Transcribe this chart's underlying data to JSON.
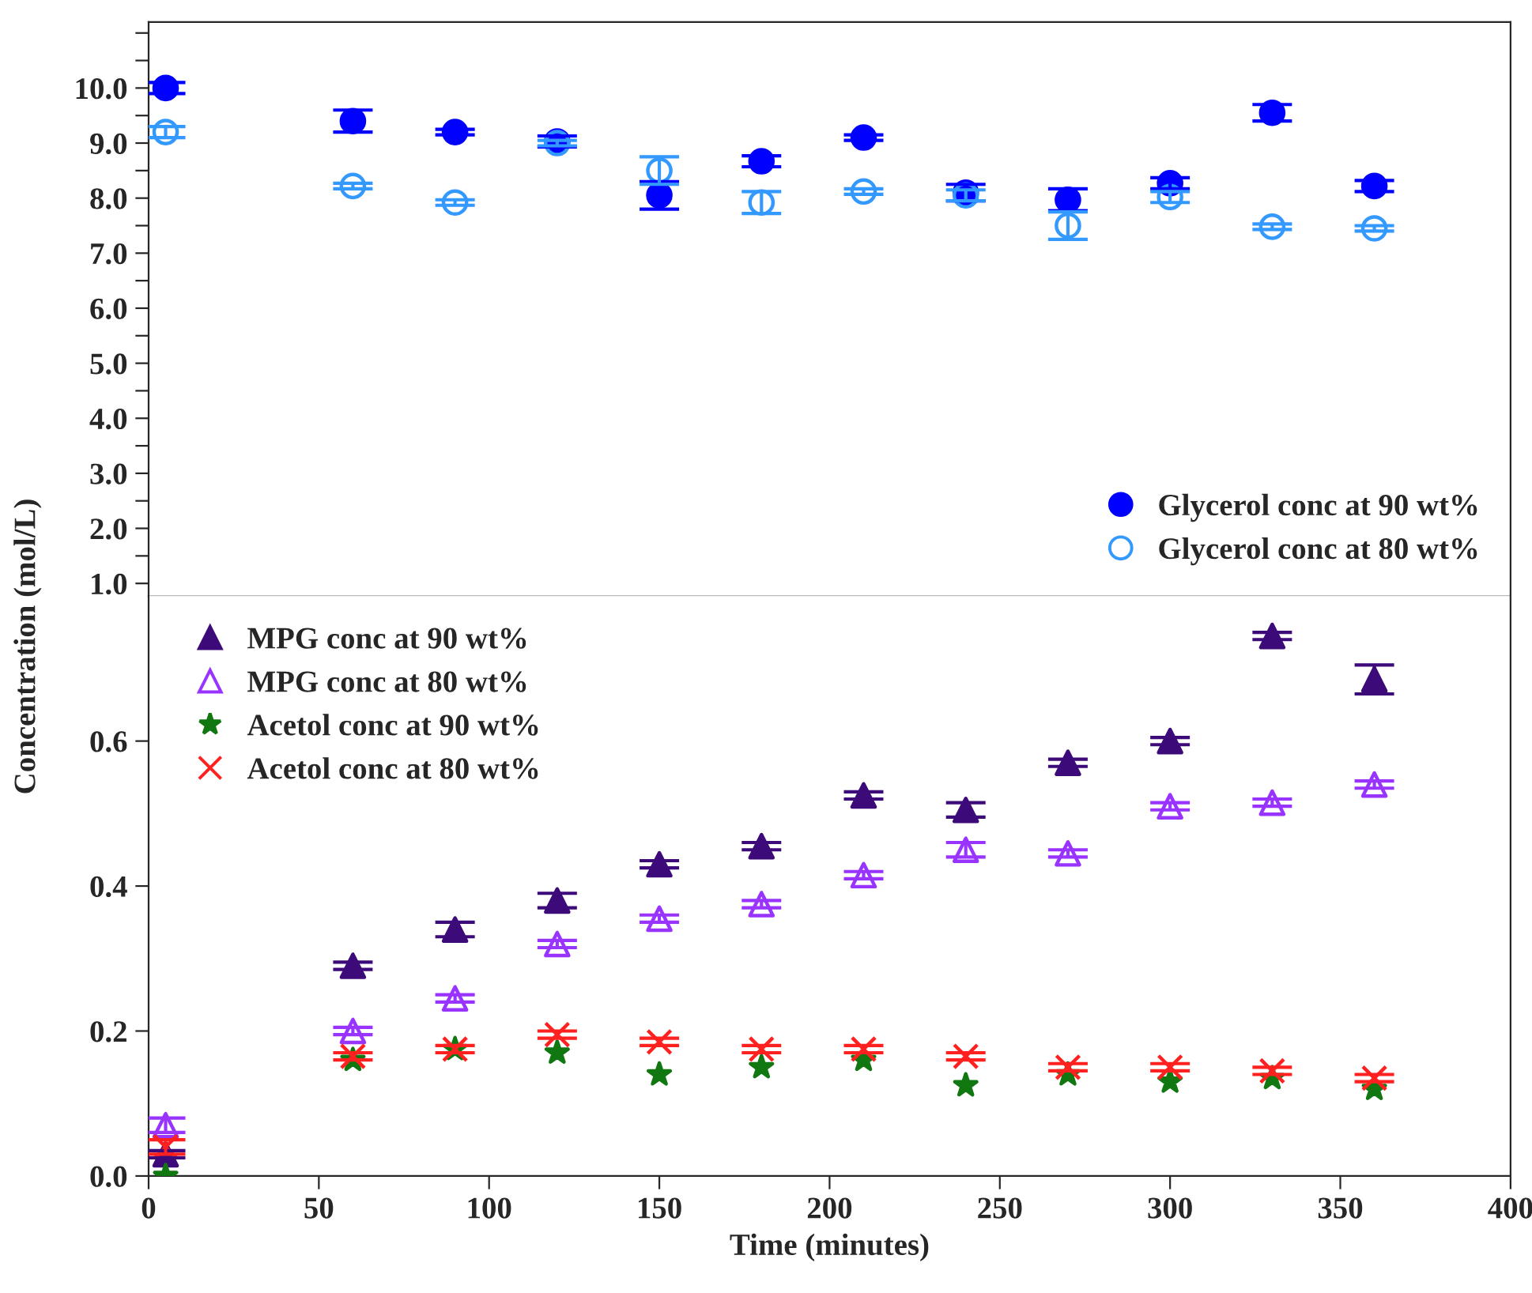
{
  "chart_data": [
    {
      "type": "scatter",
      "ylabel": "Concentration (mol/L)",
      "x": [
        5,
        60,
        90,
        120,
        150,
        180,
        210,
        240,
        270,
        300,
        330,
        360
      ],
      "xlim": [
        0,
        400
      ],
      "ylim": [
        0.77,
        11.2
      ],
      "tick_labels": "y",
      "legend": "bottom right",
      "yticks": [
        {
          "value": 1.0,
          "label": "1.0"
        },
        {
          "value": 1.5,
          "label": null
        },
        {
          "value": 2.0,
          "label": "2.0"
        },
        {
          "value": 2.5,
          "label": null
        },
        {
          "value": 3.0,
          "label": "3.0"
        },
        {
          "value": 3.5,
          "label": null
        },
        {
          "value": 4.0,
          "label": "4.0"
        },
        {
          "value": 4.5,
          "label": null
        },
        {
          "value": 5.0,
          "label": "5.0"
        },
        {
          "value": 5.5,
          "label": null
        },
        {
          "value": 6.0,
          "label": "6.0"
        },
        {
          "value": 6.5,
          "label": null
        },
        {
          "value": 7.0,
          "label": "7.0"
        },
        {
          "value": 7.5,
          "label": null
        },
        {
          "value": 8.0,
          "label": "8.0"
        },
        {
          "value": 8.5,
          "label": null
        },
        {
          "value": 9.0,
          "label": "9.0"
        },
        {
          "value": 9.5,
          "label": null
        },
        {
          "value": 10.0,
          "label": "10.0"
        },
        {
          "value": 10.5,
          "label": null
        },
        {
          "value": 11.0,
          "label": null
        }
      ],
      "series": [
        {
          "name": "Glycerol conc at 90 wt%",
          "color": "#0000ff",
          "marker": "circle",
          "values": [
            10.0,
            9.4,
            9.2,
            9.03,
            8.05,
            8.67,
            9.1,
            8.1,
            7.97,
            8.27,
            9.55,
            8.22
          ],
          "errors": [
            0.1,
            0.2,
            0.05,
            0.1,
            0.25,
            0.1,
            0.05,
            0.15,
            0.2,
            0.1,
            0.15,
            0.1
          ]
        },
        {
          "name": "Glycerol conc at 80 wt%",
          "color": "#3399ff",
          "marker": "circle",
          "values": [
            9.2,
            8.22,
            7.92,
            9.0,
            8.5,
            7.92,
            8.12,
            8.05,
            7.5,
            8.02,
            7.48,
            7.45
          ],
          "errors": [
            0.1,
            0.05,
            0.05,
            0.05,
            0.25,
            0.2,
            0.05,
            0.1,
            0.25,
            0.1,
            0.05,
            0.05
          ]
        }
      ]
    },
    {
      "type": "scatter",
      "xlabel": "Time (minutes)",
      "x": [
        5,
        60,
        90,
        120,
        150,
        180,
        210,
        240,
        270,
        300,
        330,
        360
      ],
      "xlim": [
        0,
        400
      ],
      "xticks": [
        0,
        50,
        100,
        150,
        200,
        250,
        300,
        350,
        400
      ],
      "ylim": [
        0,
        0.8
      ],
      "yticks": [
        {
          "value": 0,
          "label": "0.0"
        },
        {
          "value": 0.2,
          "label": "0.2"
        },
        {
          "value": 0.4,
          "label": "0.4"
        },
        {
          "value": 0.6,
          "label": "0.6"
        }
      ],
      "legend": "top left",
      "series": [
        {
          "name": "MPG conc at 90 wt%",
          "color": "#3d0a7a",
          "marker": "triangle",
          "values": [
            0.03,
            0.29,
            0.34,
            0.38,
            0.43,
            0.455,
            0.525,
            0.505,
            0.57,
            0.6,
            0.745,
            0.685
          ],
          "errors": [
            0.005,
            0.005,
            0.01,
            0.01,
            0.005,
            0.005,
            0.005,
            0.01,
            0.005,
            0.005,
            0.005,
            0.02
          ]
        },
        {
          "name": "MPG conc at 80 wt%",
          "color": "#9933ff",
          "marker": "triangle",
          "values": [
            0.07,
            0.2,
            0.245,
            0.32,
            0.355,
            0.375,
            0.415,
            0.45,
            0.445,
            0.51,
            0.515,
            0.54
          ],
          "errors": [
            0.01,
            0.005,
            0.005,
            0.005,
            0.005,
            0.005,
            0.005,
            0.01,
            0.005,
            0.005,
            0.005,
            0.005
          ]
        },
        {
          "name": "Acetol conc at 90 wt%",
          "color": "#117711",
          "marker": "star",
          "values": [
            0.0,
            0.16,
            0.175,
            0.17,
            0.14,
            0.15,
            0.16,
            0.125,
            0.14,
            0.13,
            0.135,
            0.12
          ]
        },
        {
          "name": "Acetol conc at 80 wt%",
          "color": "#ff2020",
          "marker": "cross",
          "values": [
            0.04,
            0.165,
            0.175,
            0.195,
            0.185,
            0.175,
            0.175,
            0.165,
            0.15,
            0.15,
            0.145,
            0.135
          ],
          "errors": [
            0.01,
            0.005,
            0.005,
            0.005,
            0.005,
            0.005,
            0.005,
            0.005,
            0.005,
            0.005,
            0.005,
            0.005
          ]
        }
      ]
    }
  ]
}
